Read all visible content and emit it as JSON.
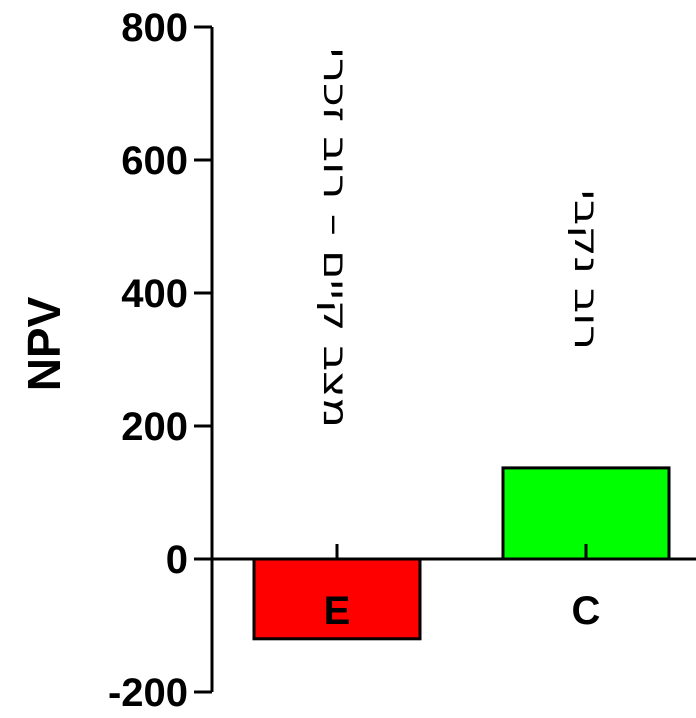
{
  "chart_data": {
    "type": "bar",
    "ylabel": "NPV",
    "ylim": [
      -200,
      800
    ],
    "yticks": [
      "800",
      "600",
      "400",
      "200",
      "0",
      "-200"
    ],
    "categories": [
      "E",
      "C"
    ],
    "values": [
      -120,
      137
    ],
    "colors": [
      "#ff0000",
      "#00ff00"
    ],
    "annotations": [
      "מצב קיים – רוב זכרי",
      "רוב נקבי"
    ]
  }
}
